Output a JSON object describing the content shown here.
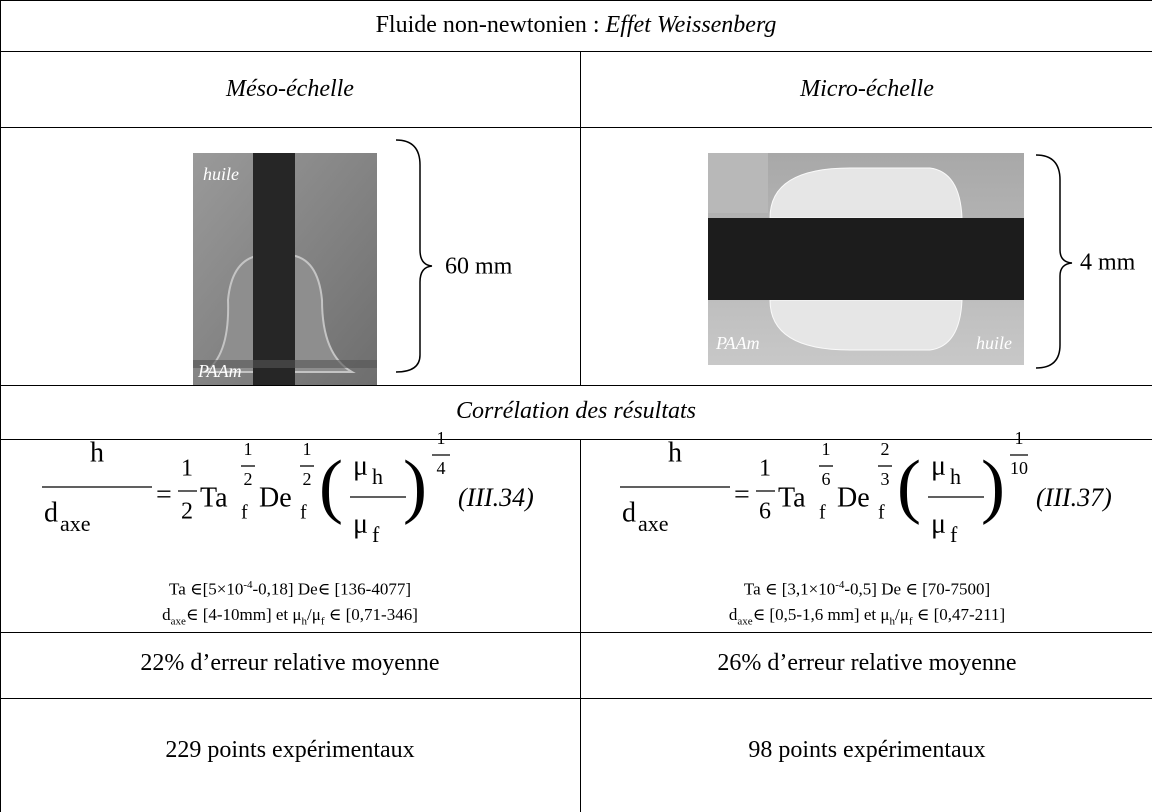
{
  "title": {
    "text": "Fluide non-newtonien : ",
    "emphasis": "Effet Weissenberg"
  },
  "columns": [
    {
      "header": "Méso-échelle",
      "image_label_top": "huile",
      "image_label_bottom": "PAAm",
      "scale": "60 mm",
      "formula": {
        "num": "h",
        "den": "d",
        "den_sub": "axe",
        "eq": "=",
        "coef_num": "1",
        "coef_den": "2",
        "ta": "Ta",
        "ta_sub": "f",
        "ta_exp_num": "1",
        "ta_exp_den": "2",
        "de": "De",
        "de_sub": "f",
        "de_exp_num": "1",
        "de_exp_den": "2",
        "lparen": "(",
        "mu_num": "μ",
        "mu_num_sub": "h",
        "mu_den": "μ",
        "mu_den_sub": "f",
        "rparen": ")",
        "exp_num": "1",
        "exp_den": "4",
        "ref": "(III.34)"
      },
      "range_1": [
        "Ta ∈[5×10",
        "-4",
        "-0,18]  De∈ [136-4077]"
      ],
      "range_2": [
        "d",
        "axe",
        "∈ [4-10mm] et μ",
        "h",
        "/μ",
        "f",
        " ∈ [0,71-346]"
      ],
      "error": "22% d’erreur relative moyenne",
      "points": "229 points expérimentaux"
    },
    {
      "header": "Micro-échelle",
      "image_label_top": "huile",
      "image_label_bottom": "PAAm",
      "scale": "4 mm",
      "formula": {
        "num": "h",
        "den": "d",
        "den_sub": "axe",
        "eq": "=",
        "coef_num": "1",
        "coef_den": "6",
        "ta": "Ta",
        "ta_sub": "f",
        "ta_exp_num": "1",
        "ta_exp_den": "6",
        "de": "De",
        "de_sub": "f",
        "de_exp_num": "2",
        "de_exp_den": "3",
        "lparen": "(",
        "mu_num": "μ",
        "mu_num_sub": "h",
        "mu_den": "μ",
        "mu_den_sub": "f",
        "rparen": ")",
        "exp_num": "1",
        "exp_den": "10",
        "ref": "(III.37)"
      },
      "range_1": [
        "Ta ∈ [3,1×10",
        "-4",
        "-0,5]  De ∈ [70-7500]"
      ],
      "range_2": [
        "d",
        "axe",
        "∈ [0,5-1,6 mm] et μ",
        "h",
        "/μ",
        "f",
        " ∈ [0,47-211]"
      ],
      "error": "26% d’erreur relative moyenne",
      "points": "98 points expérimentaux"
    }
  ],
  "correlation": "Corrélation des résultats"
}
